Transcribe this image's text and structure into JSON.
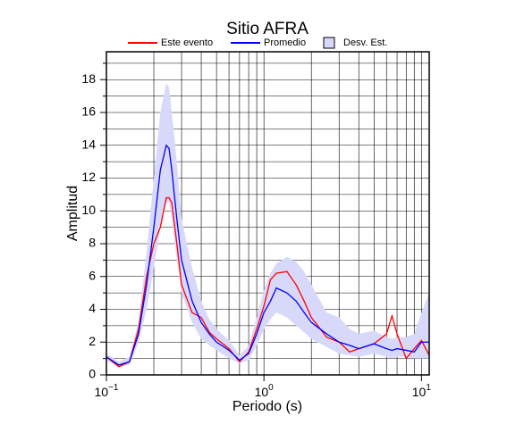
{
  "chart_data": {
    "type": "line",
    "title": "Sitio AFRA",
    "xlabel": "Periodo (s)",
    "ylabel": "Amplitud",
    "xscale": "log",
    "grid": true,
    "xlim": [
      0.1,
      11.2
    ],
    "ylim": [
      0,
      19.7
    ],
    "xticks": [
      {
        "value": 0.1,
        "label": "10",
        "exp": "−1"
      },
      {
        "value": 1,
        "label": "10",
        "exp": "0"
      },
      {
        "value": 10,
        "label": "10",
        "exp": "1"
      }
    ],
    "minor_xticks": [
      0.2,
      0.3,
      0.4,
      0.5,
      0.6,
      0.7,
      0.8,
      0.9,
      2,
      3,
      4,
      5,
      6,
      7,
      8,
      9
    ],
    "yticks": [
      0,
      2,
      4,
      6,
      8,
      10,
      12,
      14,
      16,
      18
    ],
    "minor_yticks": [
      1,
      3,
      5,
      7,
      9,
      11,
      13,
      15,
      17,
      19
    ],
    "x": [
      0.1,
      0.12,
      0.14,
      0.16,
      0.18,
      0.2,
      0.22,
      0.24,
      0.25,
      0.26,
      0.28,
      0.3,
      0.35,
      0.4,
      0.45,
      0.5,
      0.6,
      0.7,
      0.8,
      0.9,
      1.0,
      1.1,
      1.2,
      1.4,
      1.6,
      1.8,
      2.0,
      2.5,
      3,
      3.5,
      4,
      5,
      6,
      6.5,
      7,
      8,
      9,
      10,
      11.2
    ],
    "band": {
      "name": "Desv. Est.",
      "color": "#d8d8fa",
      "lower": [
        0.9,
        0.5,
        0.6,
        2,
        4,
        6.5,
        9,
        10.5,
        10.5,
        9.5,
        7,
        5,
        3.2,
        2.2,
        1.8,
        1.5,
        1.0,
        0.7,
        0.9,
        1.8,
        2.8,
        3.4,
        3.8,
        3.5,
        3,
        2.6,
        2.2,
        1.7,
        1.3,
        1.2,
        1.1,
        1.3,
        1.1,
        1.0,
        1.1,
        1.1,
        1.0,
        1.0,
        1.0
      ],
      "upper": [
        1.3,
        0.8,
        1.1,
        3.3,
        7.5,
        12,
        16,
        17.8,
        17.5,
        16,
        13,
        9.5,
        6.5,
        4.5,
        3.4,
        2.8,
        2.1,
        1.2,
        1.8,
        3.5,
        5.2,
        6.2,
        6.8,
        7.2,
        6.9,
        6.3,
        5.5,
        3.8,
        3.5,
        2.8,
        2.5,
        2.7,
        2.3,
        2.2,
        2.3,
        2.3,
        2.5,
        3.8,
        5.0
      ]
    },
    "series": [
      {
        "name": "Este evento",
        "color": "#ff0000",
        "values": [
          1.1,
          0.5,
          0.8,
          2.8,
          6,
          8,
          9,
          10.8,
          10.8,
          10.5,
          8,
          5.5,
          3.8,
          3.5,
          2.6,
          2.2,
          1.6,
          0.8,
          1.4,
          2.8,
          4.2,
          5.8,
          6.2,
          6.3,
          5.5,
          4.5,
          3.5,
          2.3,
          2.0,
          1.4,
          1.6,
          1.9,
          2.5,
          3.6,
          2.5,
          1.0,
          1.6,
          2.1,
          1.2
        ]
      },
      {
        "name": "Promedio",
        "color": "#0000ff",
        "values": [
          1.1,
          0.6,
          0.8,
          2.5,
          5.5,
          9,
          12.5,
          14,
          13.8,
          12.5,
          9.5,
          7,
          4.5,
          3.2,
          2.5,
          2,
          1.5,
          0.9,
          1.3,
          2.5,
          3.8,
          4.5,
          5.3,
          5,
          4.5,
          3.8,
          3.2,
          2.5,
          2.0,
          1.8,
          1.6,
          1.9,
          1.6,
          1.5,
          1.6,
          1.5,
          1.4,
          2.0,
          2.0
        ]
      }
    ]
  }
}
